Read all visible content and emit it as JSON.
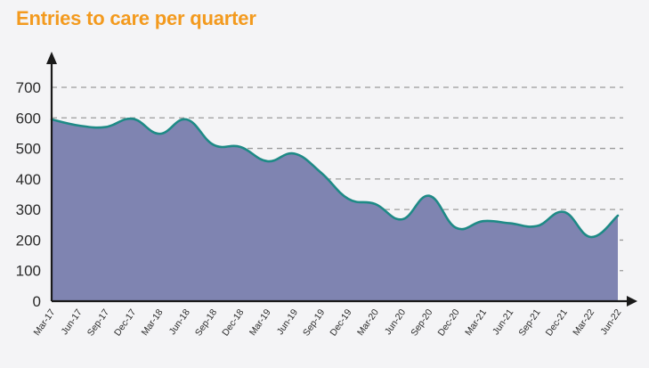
{
  "colors": {
    "title": "#f39a1e",
    "area_fill": "#7f84b1",
    "line": "#1e8a86",
    "grid": "#9b9b9b",
    "axis": "#1a1a1a"
  },
  "chart_data": {
    "type": "area",
    "title": "Entries to care per quarter",
    "xlabel": "",
    "ylabel": "",
    "ylim": [
      0,
      700
    ],
    "yticks": [
      0,
      100,
      200,
      300,
      400,
      500,
      600,
      700
    ],
    "grid": "horizontal dashed",
    "legend": "none",
    "categories": [
      "Mar-17",
      "Jun-17",
      "Sep-17",
      "Dec-17",
      "Mar-18",
      "Jun-18",
      "Sep-18",
      "Dec-18",
      "Mar-19",
      "Jun-19",
      "Sep-19",
      "Dec-19",
      "Mar-20",
      "Jun-20",
      "Sep-20",
      "Dec-20",
      "Mar-21",
      "Jun-21",
      "Sep-21",
      "Dec-21",
      "Mar-22",
      "Jun-22"
    ],
    "values": [
      595,
      575,
      570,
      597,
      548,
      595,
      512,
      505,
      458,
      483,
      420,
      335,
      318,
      268,
      345,
      240,
      262,
      255,
      246,
      292,
      210,
      280
    ]
  }
}
